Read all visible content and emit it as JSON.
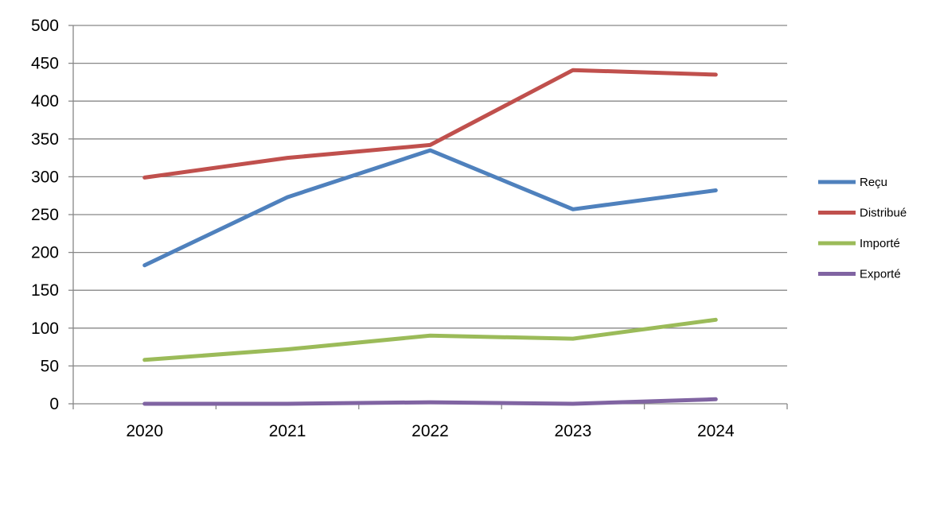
{
  "chart_data": {
    "type": "line",
    "title": "",
    "xlabel": "",
    "ylabel": "",
    "categories": [
      "2020",
      "2021",
      "2022",
      "2023",
      "2024"
    ],
    "ylim": [
      0,
      500
    ],
    "yticks": [
      0,
      50,
      100,
      150,
      200,
      250,
      300,
      350,
      400,
      450,
      500
    ],
    "grid": true,
    "legend_position": "right",
    "series": [
      {
        "name": "Reçu",
        "color": "#4F81BD",
        "values": [
          183,
          273,
          335,
          257,
          282
        ]
      },
      {
        "name": "Distribué",
        "color": "#C0504D",
        "values": [
          299,
          325,
          342,
          441,
          435
        ]
      },
      {
        "name": "Importé",
        "color": "#9BBB59",
        "values": [
          58,
          72,
          90,
          86,
          111
        ]
      },
      {
        "name": "Exporté",
        "color": "#8064A2",
        "values": [
          0,
          0,
          2,
          0,
          6
        ]
      }
    ]
  }
}
